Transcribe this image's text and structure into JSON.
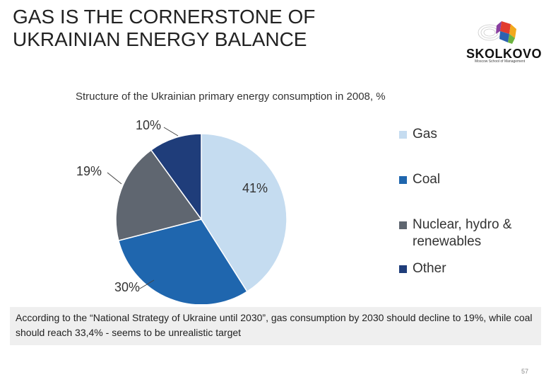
{
  "slide": {
    "title_line1": "GAS IS THE CORNERSTONE OF",
    "title_line2": "UKRAINIAN ENERGY BALANCE",
    "note": "According to the “National Strategy of Ukraine until 2030”, gas consumption by 2030 should decline to 19%, while coal should reach 33,4% - seems to be unrealistic target",
    "page_number": "57"
  },
  "logo": {
    "name": "SKOLKOVO",
    "tagline": "Moscow School of Management",
    "icon": "skolkovo-logo-icon"
  },
  "chart_data": {
    "type": "pie",
    "title": "Structure of the Ukrainian primary energy consumption in 2008, %",
    "categories": [
      "Gas",
      "Coal",
      "Nuclear, hydro & renewables",
      "Other"
    ],
    "legend_lines": [
      [
        "Gas"
      ],
      [
        "Coal"
      ],
      [
        "Nuclear, hydro &",
        "renewables"
      ],
      [
        "Other"
      ]
    ],
    "values": [
      41,
      30,
      19,
      10
    ],
    "labels": [
      "41%",
      "30%",
      "19%",
      "10%"
    ],
    "colors": [
      "#c5dcf0",
      "#1f66ae",
      "#5f6670",
      "#1f3d7a"
    ],
    "legend_position": "right"
  }
}
